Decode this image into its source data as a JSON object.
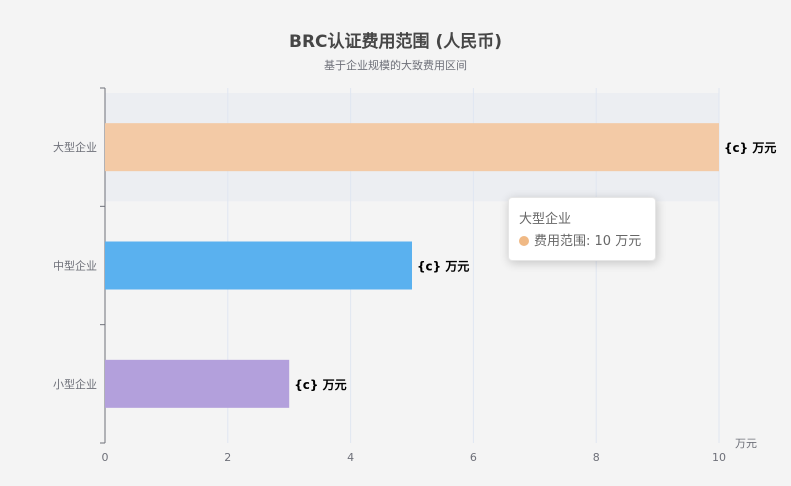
{
  "chart_data": {
    "type": "bar",
    "orientation": "horizontal",
    "title": "BRC认证费用范围 (人民币)",
    "subtitle": "基于企业规模的大致费用区间",
    "categories": [
      "小型企业",
      "中型企业",
      "大型企业"
    ],
    "values": [
      3,
      5,
      10
    ],
    "colors": [
      "#b3a0dc",
      "#5ab1ef",
      "#f3caa6"
    ],
    "data_label": "{c} 万元",
    "xlabel": "万元",
    "xlim": [
      0,
      10
    ],
    "x_ticks": [
      "0",
      "2",
      "4",
      "6",
      "8",
      "10"
    ],
    "grid": true,
    "highlighted_category": "大型企业"
  },
  "tooltip": {
    "title": "大型企业",
    "series_label": "费用范围",
    "value_text": "10 万元",
    "dot_color": "#f0b985"
  }
}
